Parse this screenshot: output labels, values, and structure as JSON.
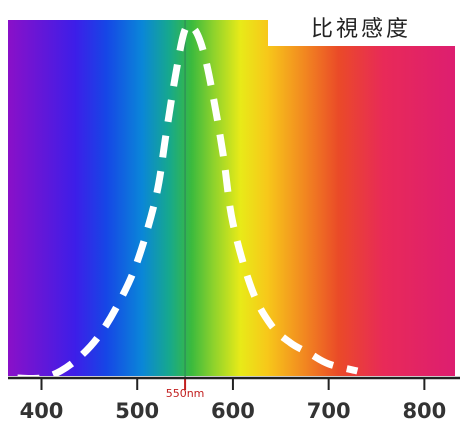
{
  "chart_data": {
    "type": "line",
    "title": "比視感度",
    "xlabel": "",
    "ylabel": "",
    "xlim": [
      365,
      832
    ],
    "ylim": [
      0,
      1
    ],
    "x_ticks": [
      400,
      500,
      600,
      700,
      800
    ],
    "x_tick_labels": [
      "400",
      "500",
      "600",
      "700",
      "800"
    ],
    "peak_marker": {
      "x": 550,
      "label": "550nm"
    },
    "series": [
      {
        "style": "dashed",
        "color": "#ffffff",
        "x": [
          375,
          400,
          420,
          440,
          460,
          480,
          500,
          520,
          530,
          540,
          550,
          560,
          570,
          580,
          590,
          600,
          620,
          640,
          660,
          680,
          700,
          730
        ],
        "values": [
          0.0,
          0.0,
          0.02,
          0.06,
          0.12,
          0.21,
          0.33,
          0.52,
          0.69,
          0.86,
          0.99,
          0.99,
          0.92,
          0.79,
          0.63,
          0.44,
          0.25,
          0.15,
          0.1,
          0.07,
          0.04,
          0.02
        ]
      }
    ],
    "grid": false,
    "legend": "none"
  },
  "colors": {
    "curve": "#ffffff",
    "peak_line": "#2e8b57",
    "peak_label": "#c21f1f",
    "axis": "#222222",
    "tick_text": "#333333"
  }
}
